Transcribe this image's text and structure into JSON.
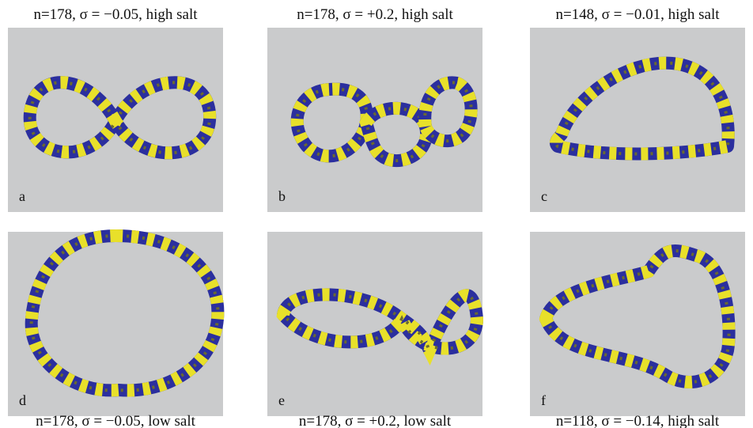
{
  "panels": [
    {
      "caption": "n=178, σ = −0.05, high salt",
      "label": "a"
    },
    {
      "caption": "n=178, σ = +0.2, high salt",
      "label": "b"
    },
    {
      "caption": "n=148, σ = −0.01, high salt",
      "label": "c"
    },
    {
      "caption": "n=178, σ = −0.05, low salt",
      "label": "d"
    },
    {
      "caption": "n=178, σ = +0.2, low salt",
      "label": "e"
    },
    {
      "caption": "n=118, σ = −0.14, high salt",
      "label": "f"
    }
  ]
}
